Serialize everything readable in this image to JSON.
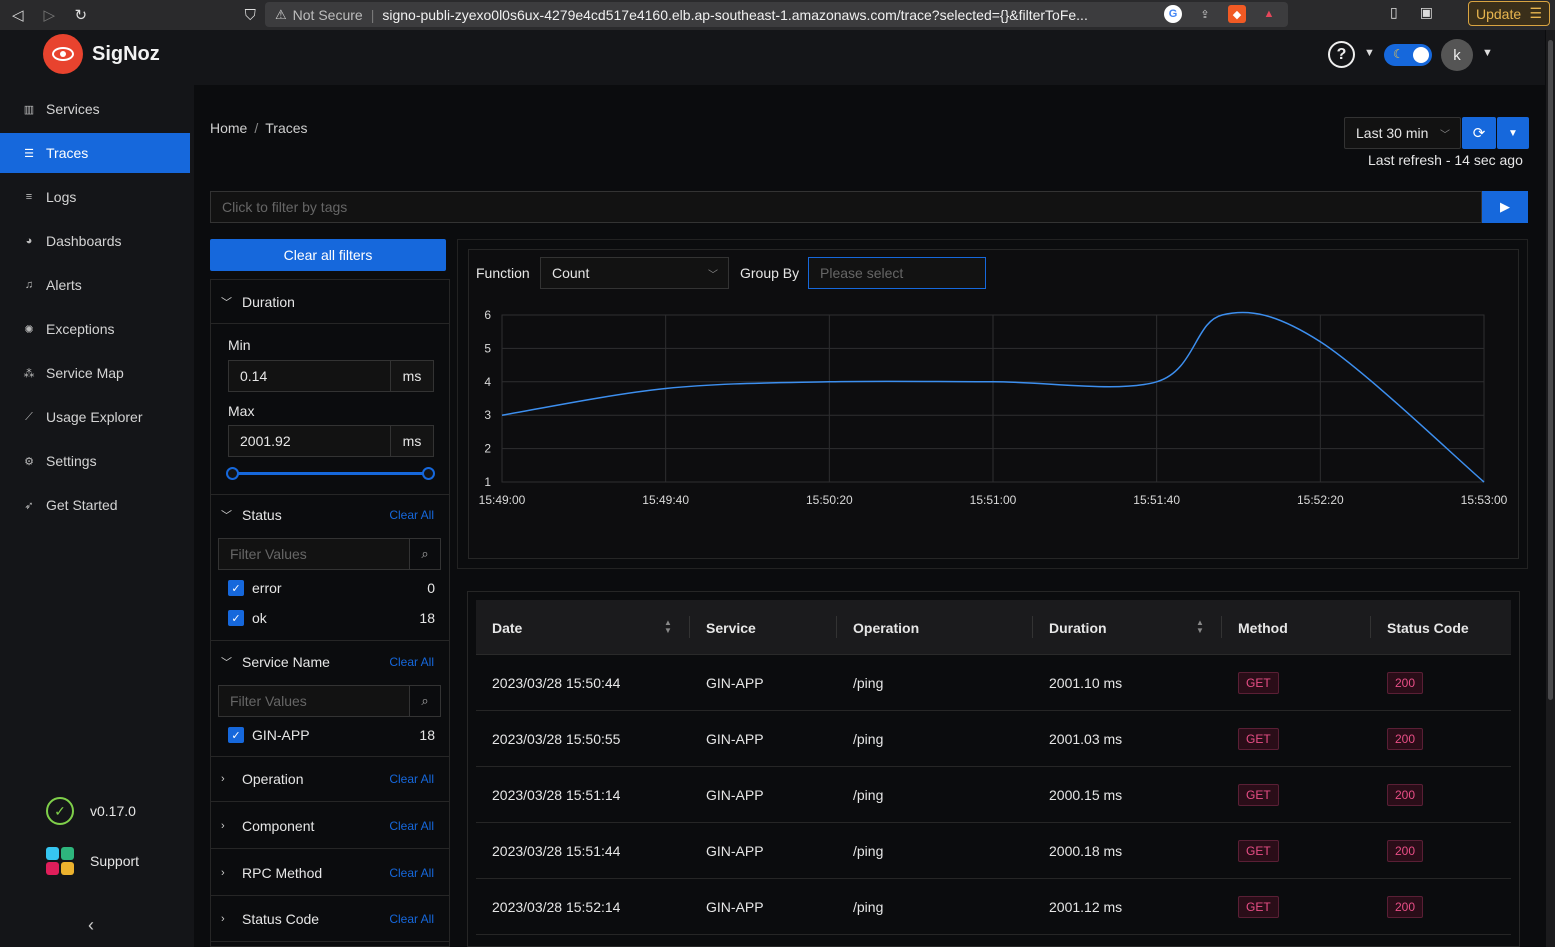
{
  "browser": {
    "security_label": "Not Secure",
    "url": "signo-publi-zyexo0l0s6ux-4279e4cd517e4160.elb.ap-southeast-1.amazonaws.com/trace?selected={}&filterToFe...",
    "update_label": "Update"
  },
  "app": {
    "brand": "SigNoz",
    "avatar_initial": "k"
  },
  "sidebar": {
    "items": [
      {
        "label": "Services",
        "icon": "bar-chart-icon"
      },
      {
        "label": "Traces",
        "icon": "menu-icon",
        "active": true
      },
      {
        "label": "Logs",
        "icon": "align-left-icon"
      },
      {
        "label": "Dashboards",
        "icon": "dashboard-icon"
      },
      {
        "label": "Alerts",
        "icon": "bell-icon"
      },
      {
        "label": "Exceptions",
        "icon": "bug-icon"
      },
      {
        "label": "Service Map",
        "icon": "deployment-unit-icon"
      },
      {
        "label": "Usage Explorer",
        "icon": "line-chart-icon"
      },
      {
        "label": "Settings",
        "icon": "settings-icon"
      },
      {
        "label": "Get Started",
        "icon": "rocket-icon"
      }
    ],
    "version": "v0.17.0",
    "support_label": "Support"
  },
  "header": {
    "breadcrumb": [
      "Home",
      "Traces"
    ],
    "time_range": "Last 30 min",
    "last_refresh": "Last refresh - 14 sec ago",
    "tag_filter_placeholder": "Click to filter by tags"
  },
  "filters": {
    "clear_all_label": "Clear all filters",
    "clear_label": "Clear All",
    "filter_values_placeholder": "Filter Values",
    "duration": {
      "title": "Duration",
      "min_label": "Min",
      "min_value": "0.14",
      "max_label": "Max",
      "max_value": "2001.92",
      "unit": "ms",
      "slider_range": [
        0,
        1
      ]
    },
    "status": {
      "title": "Status",
      "options": [
        {
          "label": "error",
          "count": "0",
          "checked": true
        },
        {
          "label": "ok",
          "count": "18",
          "checked": true
        }
      ]
    },
    "service_name": {
      "title": "Service Name",
      "options": [
        {
          "label": "GIN-APP",
          "count": "18",
          "checked": true
        }
      ]
    },
    "collapsed": [
      "Operation",
      "Component",
      "RPC Method",
      "Status Code"
    ]
  },
  "chart_controls": {
    "function_label": "Function",
    "function_value": "Count",
    "group_by_label": "Group By",
    "group_by_placeholder": "Please select"
  },
  "chart_data": {
    "type": "line",
    "title": "",
    "xlabel": "",
    "ylabel": "",
    "x": [
      "15:49:00",
      "15:49:40",
      "15:50:20",
      "15:51:00",
      "15:51:40",
      "15:52:20",
      "15:53:00"
    ],
    "series": [
      {
        "values": [
          3,
          3.8,
          4,
          4,
          4,
          5.2,
          1
        ]
      }
    ],
    "peak": {
      "x": "15:51:56",
      "y": 6
    },
    "y_ticks": [
      1,
      2,
      3,
      4,
      5,
      6
    ],
    "ylim": [
      1,
      6
    ],
    "grid": true,
    "line_color": "#3d8fef"
  },
  "table": {
    "columns": [
      "Date",
      "Service",
      "Operation",
      "Duration",
      "Method",
      "Status Code"
    ],
    "rows": [
      {
        "date": "2023/03/28 15:50:44",
        "service": "GIN-APP",
        "operation": "/ping",
        "duration": "2001.10 ms",
        "method": "GET",
        "status": "200"
      },
      {
        "date": "2023/03/28 15:50:55",
        "service": "GIN-APP",
        "operation": "/ping",
        "duration": "2001.03 ms",
        "method": "GET",
        "status": "200"
      },
      {
        "date": "2023/03/28 15:51:14",
        "service": "GIN-APP",
        "operation": "/ping",
        "duration": "2000.15 ms",
        "method": "GET",
        "status": "200"
      },
      {
        "date": "2023/03/28 15:51:44",
        "service": "GIN-APP",
        "operation": "/ping",
        "duration": "2000.18 ms",
        "method": "GET",
        "status": "200"
      },
      {
        "date": "2023/03/28 15:52:14",
        "service": "GIN-APP",
        "operation": "/ping",
        "duration": "2001.12 ms",
        "method": "GET",
        "status": "200"
      }
    ]
  },
  "colors": {
    "accent": "#1668dc",
    "tag_red": "#e84e86",
    "success": "#7fcf4a"
  }
}
